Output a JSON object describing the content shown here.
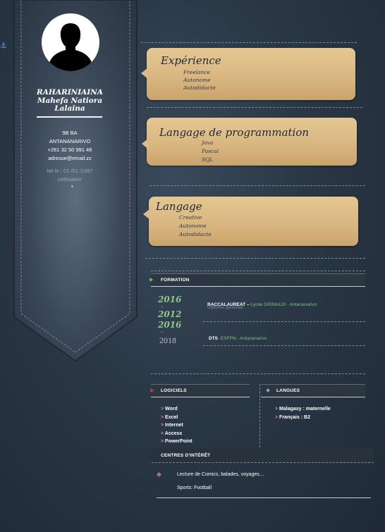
{
  "profile": {
    "name_line1": "RAHARINIAINA",
    "name_line2": "Mahefa Natiora",
    "name_line3": "Lalaina",
    "address_line1": "9B BA",
    "address_line2": "ANTANANARIVO",
    "phone": "+261 32 50 991 46",
    "email": "adresse@email.zz",
    "birth": "Né le : 01 /01 /1997",
    "status": "célibataire",
    "anchor_icon": "⚓"
  },
  "cards": {
    "experience": {
      "title": "Expérience",
      "items": [
        "Freelance",
        "Autonome",
        "Autodidacte"
      ]
    },
    "programming": {
      "title": "Langage de programmation",
      "items": [
        "Java",
        "Pascal",
        "SQL"
      ]
    },
    "language": {
      "title": "Langage",
      "items": [
        "Creative",
        "Autonome",
        "Autodidacte"
      ]
    }
  },
  "formation": {
    "label": "FORMATION",
    "years": {
      "y1": "2016",
      "d1": "-",
      "y2": "2012",
      "y3": "2016",
      "d2": "-",
      "y4": "2018"
    },
    "entries": [
      {
        "title": "BACCALAUREAT –",
        "school": " Lycée GRIMALDI - Antananarivo",
        "subtitle": "Diplôme générale"
      },
      {
        "title": "DTS",
        "school": " -ESFPN - Antananarivo"
      }
    ]
  },
  "logiciels": {
    "label": "LOGICIELS",
    "items": [
      "Word",
      "Excel",
      "Internet",
      "Access",
      "PowerPoint"
    ]
  },
  "langues": {
    "label": "LANGUES",
    "items": [
      "Malagasy : maternelle",
      "Français : B2"
    ]
  },
  "interets": {
    "label": "CENTRES D'INTÉRÊT",
    "items": [
      "Lecture de Comics, balades, voyages…",
      "Sports: Football"
    ]
  },
  "colors": {
    "card": "#d8b57f",
    "accent_green": "#8bc98b",
    "arrow_pink": "#e08aa0",
    "diamond_green": "#6ab06a",
    "diamond_red": "#c0394b",
    "diamond_blue": "#8fa0c8",
    "diamond_purple": "#a06ab0"
  }
}
